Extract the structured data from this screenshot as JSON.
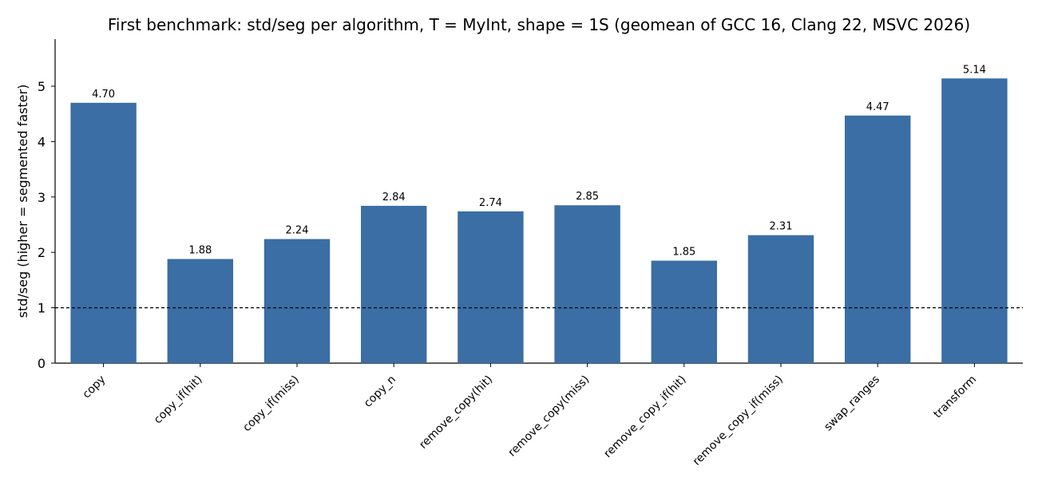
{
  "chart_data": {
    "type": "bar",
    "title": "First benchmark: std/seg per algorithm, T = MyInt, shape = 1S (geomean of GCC 16, Clang 22, MSVC 2026)",
    "xlabel": "",
    "ylabel": "std/seg  (higher = segmented faster)",
    "categories": [
      "copy",
      "copy_if(hit)",
      "copy_if(miss)",
      "copy_n",
      "remove_copy(hit)",
      "remove_copy(miss)",
      "remove_copy_if(hit)",
      "remove_copy_if(miss)",
      "swap_ranges",
      "transform"
    ],
    "values": [
      4.7,
      1.88,
      2.24,
      2.84,
      2.74,
      2.85,
      1.85,
      2.31,
      4.47,
      5.14
    ],
    "value_labels": [
      "4.70",
      "1.88",
      "2.24",
      "2.84",
      "2.74",
      "2.85",
      "1.85",
      "2.31",
      "4.47",
      "5.14"
    ],
    "yticks": [
      "0",
      "1",
      "2",
      "3",
      "4",
      "5"
    ],
    "ylim": [
      0,
      5.85
    ],
    "reference_line": 1,
    "grid": false,
    "legend": "none",
    "colors": {
      "bar": "#3a6ea5",
      "axis": "#000000",
      "reference_line": "#000000"
    }
  }
}
